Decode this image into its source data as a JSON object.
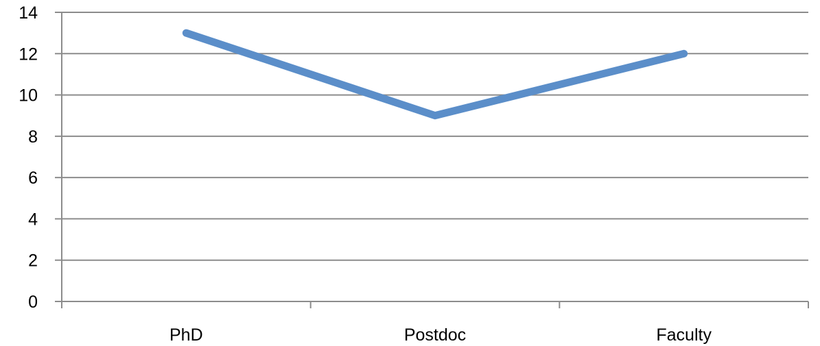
{
  "chart_data": {
    "type": "line",
    "categories": [
      "PhD",
      "Postdoc",
      "Faculty"
    ],
    "series": [
      {
        "values": [
          13,
          9,
          12
        ],
        "color": "#5b8ec9"
      }
    ],
    "ylim": [
      0,
      14
    ],
    "yticks": [
      "0",
      "2",
      "4",
      "6",
      "8",
      "10",
      "12",
      "14"
    ],
    "grid": true,
    "legend": "none",
    "title": "",
    "xlabel": "",
    "ylabel": ""
  },
  "colors": {
    "gridline": "#8c8c8c",
    "axis": "#8c8c8c",
    "text": "#000000"
  }
}
